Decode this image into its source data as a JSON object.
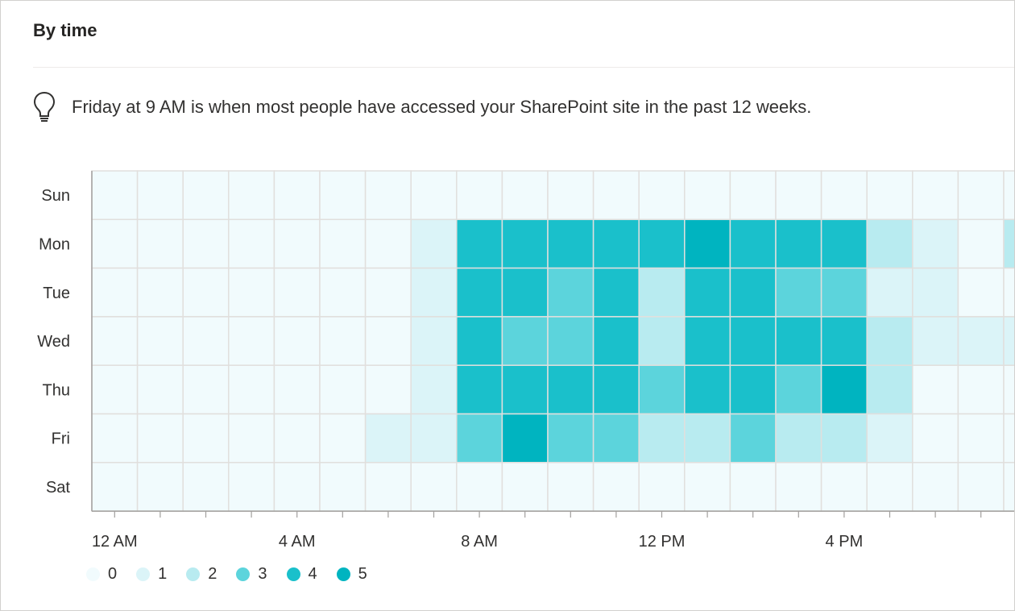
{
  "card": {
    "title": "By time",
    "insight": "Friday at 9 AM is when most people have accessed your SharePoint site in the past 12 weeks.",
    "lightbulb_icon": "lightbulb-icon"
  },
  "colors": {
    "levels": [
      "#f1fbfd",
      "#dbf4f8",
      "#b8ebf0",
      "#5cd4dc",
      "#1ac0cb",
      "#00b4c0"
    ],
    "grid_line": "#e1dfdd",
    "axis_line": "#a19f9d",
    "text": "#323130"
  },
  "chart_data": {
    "type": "heatmap",
    "rows": [
      "Sun",
      "Mon",
      "Tue",
      "Wed",
      "Thu",
      "Fri",
      "Sat"
    ],
    "x_tick_labels": [
      {
        "hour": 0,
        "label": "12 AM"
      },
      {
        "hour": 4,
        "label": "4 AM"
      },
      {
        "hour": 8,
        "label": "8 AM"
      },
      {
        "hour": 12,
        "label": "12 PM"
      },
      {
        "hour": 16,
        "label": "4 PM"
      },
      {
        "hour": 20,
        "label": "8"
      }
    ],
    "hours_visible": 21,
    "values": [
      [
        0,
        0,
        0,
        0,
        0,
        0,
        0,
        0,
        0,
        0,
        0,
        0,
        0,
        0,
        0,
        0,
        0,
        0,
        0,
        0,
        0
      ],
      [
        0,
        0,
        0,
        0,
        0,
        0,
        0,
        1,
        4,
        4,
        4,
        4,
        4,
        5,
        4,
        4,
        4,
        2,
        1,
        0,
        2
      ],
      [
        0,
        0,
        0,
        0,
        0,
        0,
        0,
        1,
        4,
        4,
        3,
        4,
        2,
        4,
        4,
        3,
        3,
        1,
        1,
        0,
        0
      ],
      [
        0,
        0,
        0,
        0,
        0,
        0,
        0,
        1,
        4,
        3,
        3,
        4,
        2,
        4,
        4,
        4,
        4,
        2,
        1,
        1,
        1
      ],
      [
        0,
        0,
        0,
        0,
        0,
        0,
        0,
        1,
        4,
        4,
        4,
        4,
        3,
        4,
        4,
        3,
        5,
        2,
        0,
        0,
        0
      ],
      [
        0,
        0,
        0,
        0,
        0,
        0,
        1,
        1,
        3,
        5,
        3,
        3,
        2,
        2,
        3,
        2,
        2,
        1,
        0,
        0,
        0
      ],
      [
        0,
        0,
        0,
        0,
        0,
        0,
        0,
        0,
        0,
        0,
        0,
        0,
        0,
        0,
        0,
        0,
        0,
        0,
        0,
        0,
        0
      ]
    ],
    "legend": [
      "0",
      "1",
      "2",
      "3",
      "4",
      "5"
    ]
  }
}
